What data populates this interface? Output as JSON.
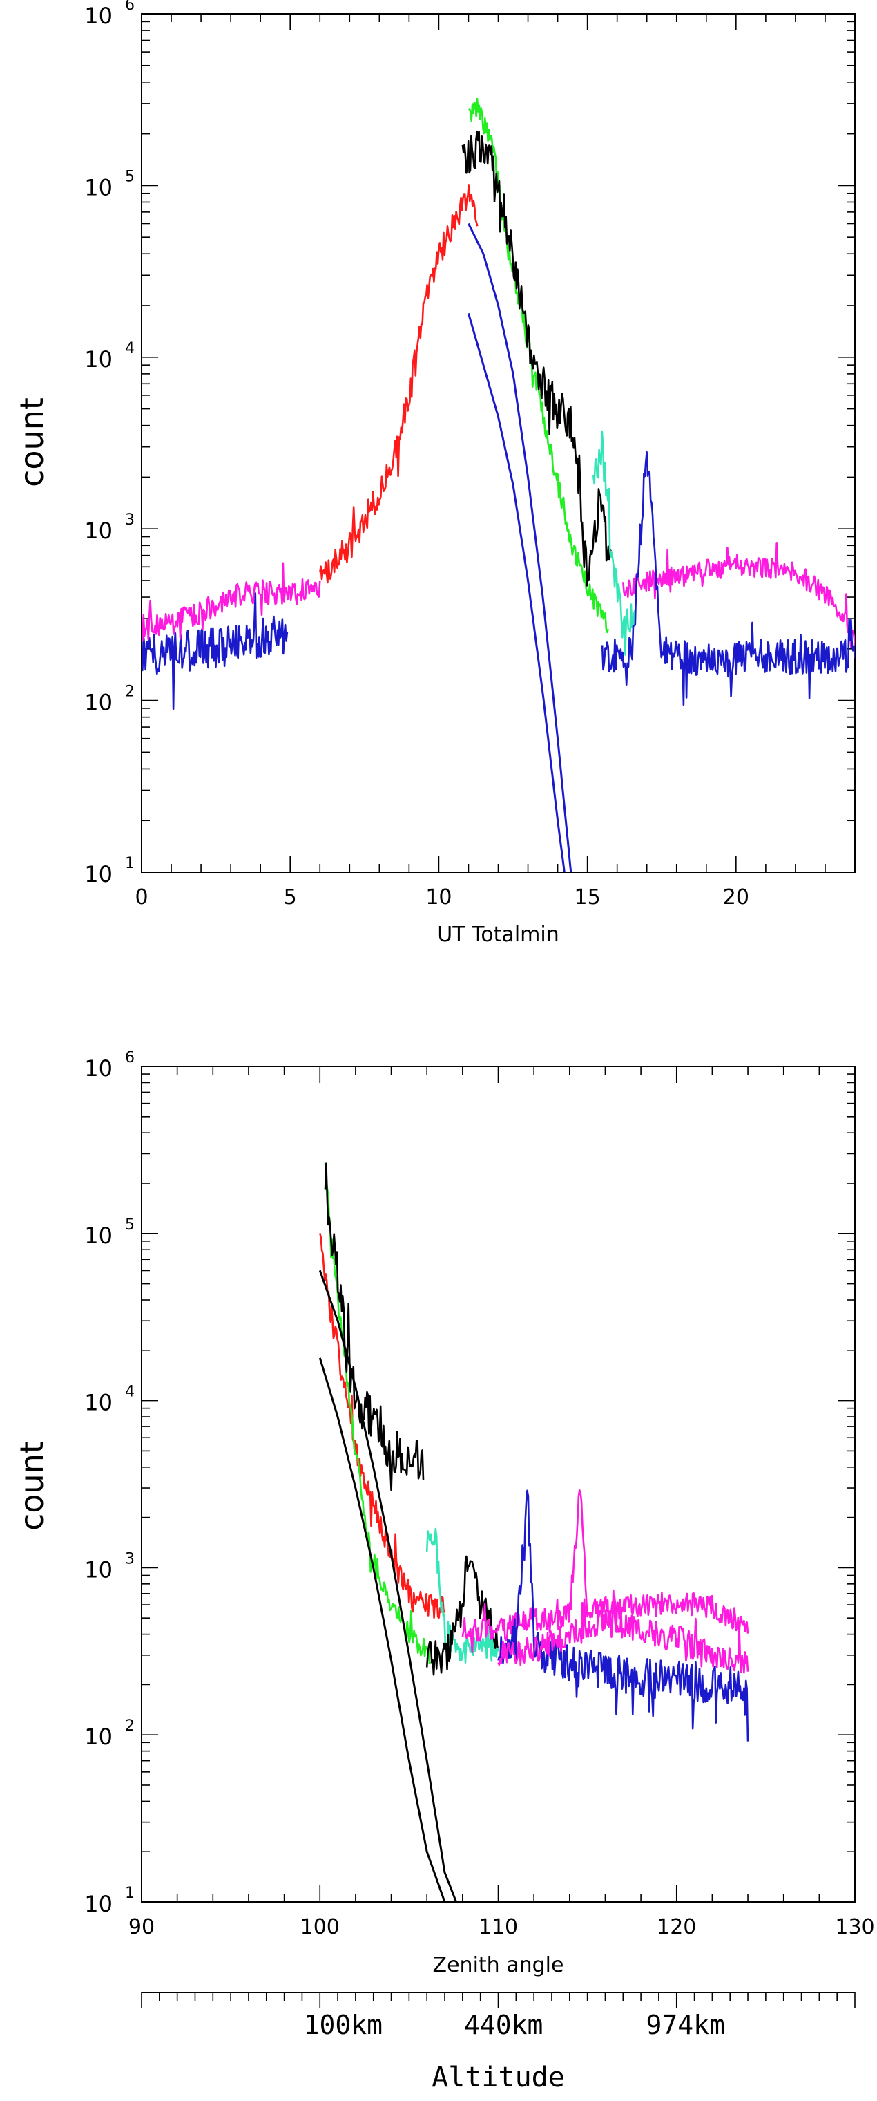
{
  "colors": {
    "black": "#000000",
    "red": "#ff1a1a",
    "green": "#22ee22",
    "teal": "#33e6b8",
    "blue": "#1a1acc",
    "magenta": "#ff1adf",
    "fit": "#1a1acc"
  },
  "chart_data": [
    {
      "type": "line",
      "xlabel": "UT Totalmin",
      "ylabel": "count",
      "xlim": [
        0,
        24
      ],
      "ylim": [
        10,
        1000000
      ],
      "yscale": "log",
      "grid": false,
      "x_ticks": [
        0,
        5,
        10,
        15,
        20
      ],
      "y_ticks": [
        {
          "value": 10,
          "base": "10",
          "exp": "1"
        },
        {
          "value": 100,
          "base": "10",
          "exp": "2"
        },
        {
          "value": 1000,
          "base": "10",
          "exp": "3"
        },
        {
          "value": 10000,
          "base": "10",
          "exp": "4"
        },
        {
          "value": 100000,
          "base": "10",
          "exp": "5"
        },
        {
          "value": 1000000,
          "base": "10",
          "exp": "6"
        }
      ],
      "series": [
        {
          "color": "blue",
          "noise": 0.12,
          "x": [
            0,
            1,
            2,
            3,
            4,
            4.9
          ],
          "y": [
            180,
            190,
            200,
            210,
            230,
            240
          ]
        },
        {
          "color": "magenta",
          "noise": 0.07,
          "x": [
            0,
            1,
            2,
            3,
            4,
            5,
            6
          ],
          "y": [
            260,
            280,
            330,
            400,
            430,
            410,
            470
          ]
        },
        {
          "color": "red",
          "noise": 0.08,
          "x": [
            6,
            7,
            8,
            8.5,
            9,
            9.5,
            10,
            10.5,
            11,
            11.3
          ],
          "y": [
            520,
            800,
            1600,
            2600,
            6000,
            19000,
            40000,
            60000,
            90000,
            60000
          ]
        },
        {
          "color": "green",
          "noise": 0.06,
          "x": [
            11,
            11.3,
            11.8,
            12.3,
            13,
            13.8,
            14.5,
            15.2,
            15.7
          ],
          "y": [
            260000,
            290000,
            180000,
            45000,
            12000,
            2600,
            800,
            380,
            280
          ]
        },
        {
          "color": "black",
          "noise": 0.12,
          "x": [
            10.8,
            11.5,
            12,
            12.5,
            13,
            13.5,
            14,
            14.5,
            15,
            15.4,
            15.8
          ],
          "y": [
            150000,
            160000,
            110000,
            35000,
            13000,
            7000,
            5000,
            4000,
            500,
            1500,
            600
          ]
        },
        {
          "color": "teal",
          "noise": 0.1,
          "x": [
            15.2,
            15.5,
            15.8,
            16.2,
            16.6
          ],
          "y": [
            1800,
            3000,
            700,
            260,
            320
          ]
        },
        {
          "color": "magenta",
          "noise": 0.06,
          "x": [
            16.2,
            17,
            17.8,
            18.5,
            20,
            22,
            23,
            24
          ],
          "y": [
            450,
            500,
            520,
            560,
            620,
            560,
            420,
            250
          ]
        },
        {
          "color": "blue",
          "noise": 0.1,
          "x": [
            15.5,
            16.5,
            17,
            17.5,
            19,
            21,
            24
          ],
          "y": [
            180,
            190,
            3000,
            190,
            170,
            180,
            180
          ]
        }
      ],
      "fits": [
        {
          "color": "fit",
          "x": [
            11,
            11.5,
            12,
            12.5,
            13,
            13.5,
            14,
            14.5
          ],
          "y": [
            60000,
            40000,
            20000,
            8000,
            2000,
            400,
            60,
            8
          ]
        },
        {
          "color": "fit",
          "x": [
            11,
            11.5,
            12,
            12.5,
            13,
            13.5,
            14,
            14.3
          ],
          "y": [
            18000,
            9000,
            4500,
            1800,
            500,
            110,
            20,
            8
          ]
        }
      ]
    },
    {
      "type": "line",
      "xlabel": "Zenith angle",
      "ylabel": "count",
      "xlim": [
        90,
        130
      ],
      "ylim": [
        10,
        1000000
      ],
      "yscale": "log",
      "grid": false,
      "x_ticks": [
        90,
        100,
        110,
        120,
        130
      ],
      "y_ticks": [
        {
          "value": 10,
          "base": "10",
          "exp": "1"
        },
        {
          "value": 100,
          "base": "10",
          "exp": "2"
        },
        {
          "value": 1000,
          "base": "10",
          "exp": "3"
        },
        {
          "value": 10000,
          "base": "10",
          "exp": "4"
        },
        {
          "value": 100000,
          "base": "10",
          "exp": "5"
        },
        {
          "value": 1000000,
          "base": "10",
          "exp": "6"
        }
      ],
      "secondary_axis": {
        "label": "Altitude",
        "tick_labels": [
          {
            "text": "100km",
            "at": 101.3
          },
          {
            "text": "440km",
            "at": 110.3
          },
          {
            "text": "974km",
            "at": 120.5
          }
        ]
      },
      "series": [
        {
          "color": "red",
          "noise": 0.08,
          "x": [
            100,
            100.5,
            101,
            101.5,
            102,
            103,
            104,
            105,
            106,
            107
          ],
          "y": [
            120000,
            40000,
            20000,
            10000,
            5000,
            2500,
            1200,
            700,
            600,
            550
          ]
        },
        {
          "color": "green",
          "noise": 0.06,
          "x": [
            100.3,
            100.6,
            101,
            101.5,
            102,
            102.5,
            103,
            104,
            105,
            106.2
          ],
          "y": [
            300000,
            100000,
            40000,
            15000,
            5000,
            2000,
            1100,
            600,
            400,
            300
          ]
        },
        {
          "color": "black",
          "noise": 0.14,
          "x": [
            100.3,
            100.6,
            101,
            101.5,
            102,
            103,
            104,
            105,
            105.8
          ],
          "y": [
            240000,
            100000,
            60000,
            20000,
            10000,
            8000,
            5000,
            4500,
            4000
          ]
        },
        {
          "color": "teal",
          "noise": 0.1,
          "x": [
            106,
            106.5,
            107,
            108,
            109,
            110
          ],
          "y": [
            1500,
            1400,
            400,
            300,
            400,
            300
          ]
        },
        {
          "color": "black",
          "noise": 0.1,
          "x": [
            106,
            107,
            108,
            108.3,
            109,
            110
          ],
          "y": [
            300,
            280,
            600,
            1200,
            600,
            380
          ]
        },
        {
          "color": "magenta",
          "noise": 0.07,
          "x": [
            108,
            110,
            112,
            113,
            114,
            114.6,
            115,
            117,
            120,
            122,
            124
          ],
          "y": [
            430,
            420,
            500,
            480,
            530,
            3000,
            560,
            580,
            620,
            580,
            450
          ]
        },
        {
          "color": "blue",
          "noise": 0.12,
          "x": [
            110,
            111,
            111.7,
            112,
            114,
            118,
            124
          ],
          "y": [
            330,
            350,
            3000,
            320,
            260,
            220,
            190
          ]
        },
        {
          "color": "magenta",
          "noise": 0.08,
          "x": [
            110,
            112,
            114,
            116,
            118,
            120,
            122,
            124
          ],
          "y": [
            300,
            320,
            400,
            470,
            420,
            380,
            300,
            270
          ]
        }
      ],
      "fits": [
        {
          "color": "black",
          "x": [
            100,
            101,
            102,
            103,
            104,
            105,
            106,
            107,
            108
          ],
          "y": [
            60000,
            30000,
            12000,
            4000,
            1200,
            300,
            70,
            15,
            8
          ]
        },
        {
          "color": "black",
          "x": [
            100,
            101,
            102,
            103,
            104,
            105,
            106,
            107,
            107.5
          ],
          "y": [
            18000,
            8000,
            3000,
            1000,
            280,
            70,
            20,
            10,
            8
          ]
        }
      ]
    }
  ]
}
